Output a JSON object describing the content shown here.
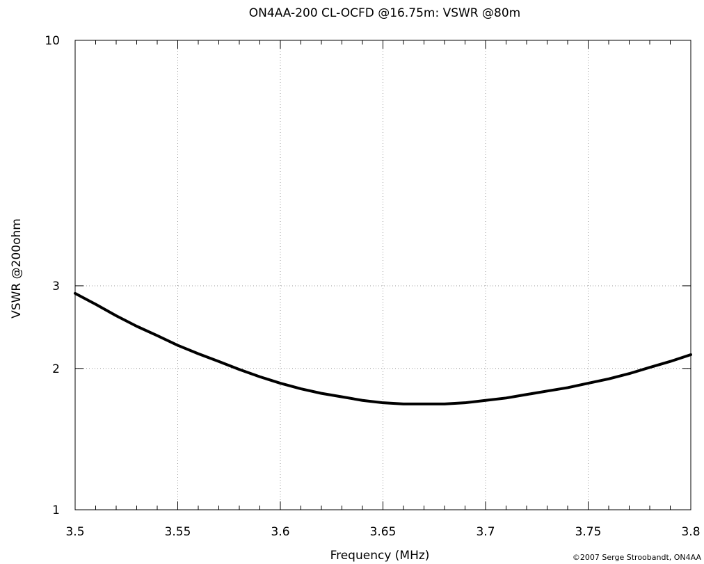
{
  "chart_data": {
    "type": "line",
    "title": "ON4AA-200 CL-OCFD @16.75m: VSWR @80m",
    "xlabel": "Frequency (MHz)",
    "ylabel": "VSWR @200ohm",
    "xlim": [
      3.5,
      3.8
    ],
    "ylim": [
      1,
      10
    ],
    "yscale": "log",
    "grid": true,
    "x_ticks": [
      3.5,
      3.55,
      3.6,
      3.65,
      3.7,
      3.75,
      3.8
    ],
    "x_tick_labels": [
      "3.5",
      "3.55",
      "3.6",
      "3.65",
      "3.7",
      "3.75",
      "3.8"
    ],
    "y_ticks": [
      1,
      2,
      3,
      10
    ],
    "y_tick_labels": [
      "1",
      "2",
      "3",
      "10"
    ],
    "line_color": "#000000",
    "grid_color": "#999999",
    "series": [
      {
        "x": [
          3.5,
          3.51,
          3.52,
          3.53,
          3.54,
          3.55,
          3.56,
          3.57,
          3.58,
          3.59,
          3.6,
          3.61,
          3.62,
          3.63,
          3.64,
          3.65,
          3.66,
          3.67,
          3.68,
          3.69,
          3.7,
          3.71,
          3.72,
          3.73,
          3.74,
          3.75,
          3.76,
          3.77,
          3.78,
          3.79,
          3.8
        ],
        "values": [
          2.89,
          2.74,
          2.59,
          2.46,
          2.35,
          2.24,
          2.15,
          2.07,
          1.99,
          1.92,
          1.86,
          1.81,
          1.77,
          1.74,
          1.71,
          1.69,
          1.68,
          1.68,
          1.68,
          1.69,
          1.71,
          1.73,
          1.76,
          1.79,
          1.82,
          1.86,
          1.9,
          1.95,
          2.01,
          2.07,
          2.14
        ]
      }
    ]
  },
  "copyright": "©2007 Serge Stroobandt, ON4AA"
}
